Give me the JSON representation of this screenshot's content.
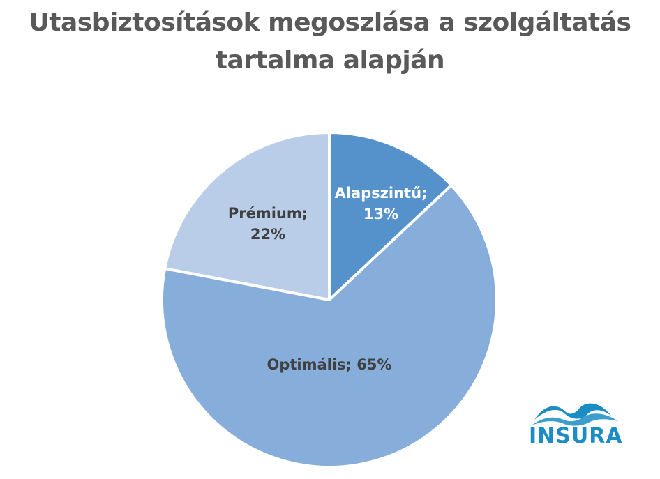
{
  "chart_data": {
    "type": "pie",
    "title": "Utasbiztosítások megoszlása a szolgáltatás tartalma alapján",
    "slices": [
      {
        "label": "Alapszintű",
        "value": 13,
        "color": "#5592cb",
        "text_color": "#ffffff"
      },
      {
        "label": "Optimális",
        "value": 65,
        "color": "#87aedb",
        "text_color": "#404040"
      },
      {
        "label": "Prémium",
        "value": 22,
        "color": "#b9cde8",
        "text_color": "#404040"
      }
    ],
    "data_labels": [
      "Alapszintű;\n13%",
      "Optimális; 65%",
      "Prémium;\n22%"
    ],
    "start_angle_deg": 0,
    "direction": "clockwise",
    "legend": "none"
  },
  "logo": {
    "text": "INSURA",
    "color": "#1b8cc4"
  }
}
